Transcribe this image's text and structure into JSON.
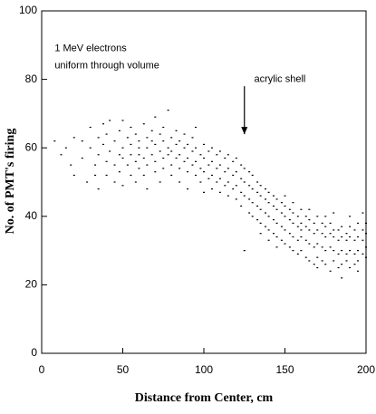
{
  "chart_data": {
    "type": "scatter",
    "xlabel": "Distance from Center, cm",
    "ylabel": "No. of PMT's firing",
    "annotations": [
      {
        "text": "1 MeV electrons",
        "x": 8,
        "y": 89
      },
      {
        "text": "uniform through volume",
        "x": 8,
        "y": 84
      },
      {
        "text": "acrylic shell",
        "x": 131,
        "y": 80,
        "arrow_from": [
          125,
          78
        ],
        "arrow_to": [
          125,
          64
        ]
      }
    ],
    "xlim": [
      0,
      200
    ],
    "ylim": [
      0,
      100
    ],
    "xticks": [
      0,
      50,
      100,
      150,
      200
    ],
    "yticks": [
      0,
      20,
      40,
      60,
      80,
      100
    ],
    "color": "#000000",
    "x": [
      8,
      12,
      15,
      18,
      20,
      20,
      25,
      25,
      28,
      30,
      30,
      33,
      33,
      35,
      35,
      35,
      38,
      38,
      40,
      40,
      40,
      42,
      42,
      45,
      45,
      45,
      48,
      48,
      48,
      50,
      50,
      50,
      50,
      53,
      53,
      55,
      55,
      55,
      55,
      58,
      58,
      58,
      60,
      60,
      60,
      60,
      63,
      63,
      63,
      65,
      65,
      65,
      65,
      68,
      68,
      68,
      70,
      70,
      70,
      70,
      73,
      73,
      73,
      75,
      75,
      75,
      75,
      78,
      78,
      78,
      80,
      80,
      80,
      80,
      83,
      83,
      83,
      85,
      85,
      85,
      85,
      88,
      88,
      88,
      90,
      90,
      90,
      90,
      93,
      93,
      93,
      95,
      95,
      95,
      95,
      98,
      98,
      98,
      100,
      100,
      100,
      100,
      103,
      103,
      103,
      105,
      105,
      105,
      105,
      108,
      108,
      108,
      110,
      110,
      110,
      110,
      113,
      113,
      113,
      115,
      115,
      115,
      115,
      118,
      118,
      118,
      120,
      120,
      120,
      120,
      123,
      123,
      123,
      123,
      125,
      125,
      125,
      125,
      128,
      128,
      128,
      128,
      130,
      130,
      130,
      130,
      133,
      133,
      133,
      133,
      135,
      135,
      135,
      135,
      135,
      138,
      138,
      138,
      138,
      140,
      140,
      140,
      140,
      140,
      143,
      143,
      143,
      143,
      145,
      145,
      145,
      145,
      145,
      148,
      148,
      148,
      148,
      150,
      150,
      150,
      150,
      150,
      153,
      153,
      153,
      153,
      155,
      155,
      155,
      155,
      155,
      158,
      158,
      158,
      158,
      160,
      160,
      160,
      160,
      160,
      163,
      163,
      163,
      163,
      165,
      165,
      165,
      165,
      165,
      168,
      168,
      168,
      168,
      170,
      170,
      170,
      170,
      170,
      173,
      173,
      173,
      173,
      175,
      175,
      175,
      175,
      175,
      178,
      178,
      178,
      178,
      180,
      180,
      180,
      180,
      180,
      183,
      183,
      183,
      183,
      185,
      185,
      185,
      185,
      185,
      188,
      188,
      188,
      188,
      190,
      190,
      190,
      190,
      190,
      193,
      193,
      193,
      193,
      195,
      195,
      195,
      195,
      195,
      198,
      198,
      198,
      198,
      200,
      200,
      200,
      200
    ],
    "values": [
      62,
      58,
      60,
      55,
      63,
      52,
      57,
      62,
      50,
      60,
      66,
      55,
      52,
      63,
      58,
      48,
      61,
      67,
      56,
      52,
      64,
      59,
      68,
      62,
      55,
      50,
      58,
      65,
      53,
      60,
      57,
      68,
      49,
      63,
      55,
      58,
      61,
      66,
      52,
      56,
      64,
      50,
      60,
      62,
      58,
      54,
      67,
      57,
      52,
      60,
      63,
      55,
      48,
      58,
      65,
      62,
      61,
      56,
      53,
      69,
      59,
      64,
      50,
      62,
      57,
      66,
      54,
      60,
      58,
      71,
      63,
      55,
      52,
      59,
      61,
      57,
      65,
      58,
      54,
      62,
      50,
      60,
      56,
      64,
      57,
      53,
      61,
      48,
      59,
      55,
      63,
      56,
      52,
      60,
      66,
      58,
      54,
      50,
      57,
      53,
      61,
      47,
      55,
      51,
      59,
      56,
      52,
      48,
      60,
      54,
      50,
      58,
      55,
      51,
      47,
      59,
      53,
      49,
      57,
      54,
      50,
      46,
      58,
      52,
      48,
      56,
      53,
      49,
      45,
      57,
      51,
      47,
      55,
      43,
      50,
      46,
      54,
      30,
      49,
      45,
      53,
      41,
      48,
      44,
      52,
      40,
      47,
      43,
      50,
      39,
      46,
      42,
      49,
      38,
      35,
      45,
      41,
      48,
      37,
      44,
      40,
      47,
      36,
      33,
      43,
      39,
      46,
      35,
      42,
      38,
      45,
      34,
      31,
      41,
      37,
      44,
      33,
      40,
      36,
      43,
      32,
      46,
      39,
      35,
      42,
      31,
      38,
      34,
      41,
      30,
      44,
      37,
      33,
      40,
      29,
      38,
      34,
      42,
      30,
      36,
      37,
      33,
      40,
      28,
      36,
      32,
      39,
      27,
      42,
      35,
      31,
      38,
      26,
      36,
      32,
      40,
      28,
      25,
      35,
      31,
      38,
      27,
      34,
      30,
      37,
      26,
      40,
      35,
      31,
      38,
      24,
      34,
      30,
      36,
      27,
      41,
      33,
      29,
      36,
      25,
      34,
      30,
      37,
      26,
      22,
      33,
      29,
      35,
      27,
      34,
      30,
      37,
      25,
      40,
      33,
      29,
      36,
      26,
      34,
      30,
      38,
      27,
      24,
      33,
      29,
      36,
      41,
      35,
      31,
      38,
      28
    ]
  }
}
